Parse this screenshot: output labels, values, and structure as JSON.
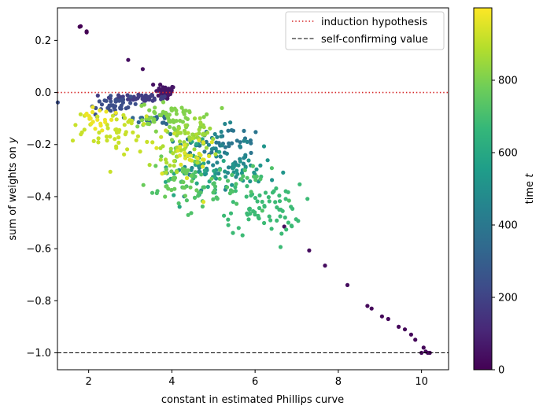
{
  "chart_data": {
    "type": "scatter",
    "title": "",
    "xlabel": "constant in estimated Phillips curve",
    "ylabel_prefix": "sum of weights on ",
    "ylabel_var": "y",
    "xlim": [
      1.25,
      10.65
    ],
    "ylim": [
      -1.065,
      0.325
    ],
    "xticks": [
      {
        "value": 2,
        "label": "2"
      },
      {
        "value": 4,
        "label": "4"
      },
      {
        "value": 6,
        "label": "6"
      },
      {
        "value": 8,
        "label": "8"
      },
      {
        "value": 10,
        "label": "10"
      }
    ],
    "yticks": [
      {
        "value": 0.2,
        "label": "0.2"
      },
      {
        "value": 0.0,
        "label": "0.0"
      },
      {
        "value": -0.2,
        "label": "−0.2"
      },
      {
        "value": -0.4,
        "label": "−0.4"
      },
      {
        "value": -0.6,
        "label": "−0.6"
      },
      {
        "value": -0.8,
        "label": "−0.8"
      },
      {
        "value": -1.0,
        "label": "−1.0"
      }
    ],
    "grid": false,
    "legend_position": "top-right",
    "reference_lines": [
      {
        "name": "induction hypothesis",
        "y": 0.0,
        "color": "#d62728",
        "style": "dotted"
      },
      {
        "name": "self-confirming value",
        "y": -1.0,
        "color": "#000000",
        "style": "dashed"
      }
    ],
    "colorbar": {
      "label_prefix": "time ",
      "label_var": "t",
      "colormap": "viridis",
      "range": [
        0,
        1000
      ],
      "ticks": [
        {
          "value": 0,
          "label": "0"
        },
        {
          "value": 200,
          "label": "200"
        },
        {
          "value": 400,
          "label": "400"
        },
        {
          "value": 600,
          "label": "600"
        },
        {
          "value": 800,
          "label": "800"
        }
      ]
    },
    "point_groups": [
      {
        "t": 0,
        "x": [
          1.78,
          1.95
        ],
        "y": [
          0.258,
          0.235
        ],
        "n": 2,
        "sx": 0.01,
        "sy": 0.005
      },
      {
        "t": 20,
        "x": [
          10.2,
          10.05,
          10.0,
          10.1,
          10.15,
          9.85,
          9.75,
          9.6,
          9.45,
          9.2,
          9.05,
          8.8,
          8.7
        ],
        "y": [
          -1.0,
          -0.98,
          -1.0,
          -0.995,
          -1.0,
          -0.95,
          -0.93,
          -0.91,
          -0.9,
          -0.87,
          -0.86,
          -0.83,
          -0.82
        ],
        "n": 1,
        "sx": 0.0,
        "sy": 0.0
      },
      {
        "t": 30,
        "x": [
          8.22,
          7.68,
          7.3,
          6.7
        ],
        "y": [
          -0.74,
          -0.665,
          -0.607,
          -0.515
        ],
        "n": 1,
        "sx": 0.0,
        "sy": 0.0
      },
      {
        "t": 40,
        "x": [
          2.95,
          3.3,
          3.55,
          3.72,
          3.8,
          3.9
        ],
        "y": [
          0.125,
          0.09,
          0.03,
          0.03,
          0.015,
          0.005
        ],
        "n": 1,
        "sx": 0.0,
        "sy": 0.0
      },
      {
        "t": 60,
        "x": [
          3.85
        ],
        "y": [
          0.0
        ],
        "n": 40,
        "sx": 0.12,
        "sy": 0.014
      },
      {
        "t": 180,
        "x": [
          3.25
        ],
        "y": [
          -0.02
        ],
        "n": 45,
        "sx": 0.4,
        "sy": 0.007
      },
      {
        "t": 240,
        "x": [
          2.55
        ],
        "y": [
          -0.05
        ],
        "n": 40,
        "sx": 0.32,
        "sy": 0.025
      },
      {
        "t": 330,
        "x": [
          3.6
        ],
        "y": [
          -0.1
        ],
        "n": 25,
        "sx": 0.35,
        "sy": 0.012
      },
      {
        "t": 390,
        "x": [
          5.2
        ],
        "y": [
          -0.19
        ],
        "n": 40,
        "sx": 0.5,
        "sy": 0.03
      },
      {
        "t": 460,
        "x": [
          5.0
        ],
        "y": [
          -0.26
        ],
        "n": 60,
        "sx": 0.45,
        "sy": 0.06
      },
      {
        "t": 520,
        "x": [
          5.6
        ],
        "y": [
          -0.3
        ],
        "n": 40,
        "sx": 0.45,
        "sy": 0.04
      },
      {
        "t": 600,
        "x": [
          4.6
        ],
        "y": [
          -0.3
        ],
        "n": 30,
        "sx": 0.55,
        "sy": 0.06
      },
      {
        "t": 680,
        "x": [
          6.2
        ],
        "y": [
          -0.45
        ],
        "n": 70,
        "sx": 0.45,
        "sy": 0.05
      },
      {
        "t": 720,
        "x": [
          5.0
        ],
        "y": [
          -0.37
        ],
        "n": 55,
        "sx": 0.65,
        "sy": 0.04
      },
      {
        "t": 770,
        "x": [
          4.25
        ],
        "y": [
          -0.32
        ],
        "n": 40,
        "sx": 0.4,
        "sy": 0.05
      },
      {
        "t": 810,
        "x": [
          4.0
        ],
        "y": [
          -0.1
        ],
        "n": 65,
        "sx": 0.4,
        "sy": 0.03
      },
      {
        "t": 850,
        "x": [
          4.5
        ],
        "y": [
          -0.16
        ],
        "n": 35,
        "sx": 0.25,
        "sy": 0.03
      },
      {
        "t": 880,
        "x": [
          4.15
        ],
        "y": [
          -0.23
        ],
        "n": 25,
        "sx": 0.3,
        "sy": 0.05
      },
      {
        "t": 920,
        "x": [
          2.75
        ],
        "y": [
          -0.15
        ],
        "n": 55,
        "sx": 0.45,
        "sy": 0.04
      },
      {
        "t": 950,
        "x": [
          4.35
        ],
        "y": [
          -0.27
        ],
        "n": 25,
        "sx": 0.3,
        "sy": 0.05
      },
      {
        "t": 975,
        "x": [
          2.2
        ],
        "y": [
          -0.1
        ],
        "n": 20,
        "sx": 0.25,
        "sy": 0.03
      }
    ]
  }
}
